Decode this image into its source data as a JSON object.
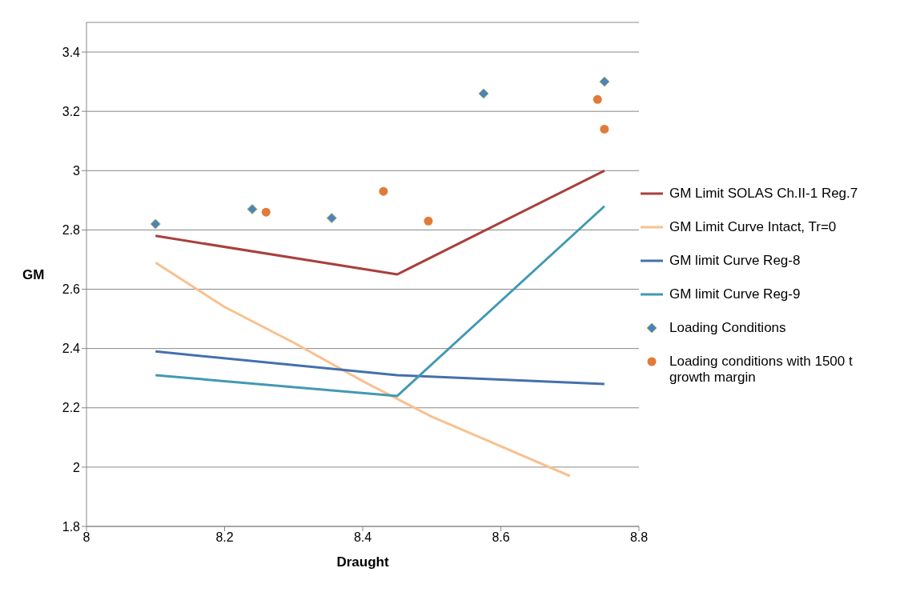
{
  "chart_data": {
    "type": "line",
    "xlabel": "Draught",
    "ylabel": "GM",
    "xlim": [
      8,
      8.8
    ],
    "xticks": [
      8,
      8.2,
      8.4,
      8.6,
      8.8
    ],
    "ylim": [
      1.8,
      3.5
    ],
    "yticks": [
      1.8,
      2,
      2.2,
      2.4,
      2.6,
      2.8,
      3,
      3.2,
      3.4
    ],
    "grid": "y",
    "legend": "right",
    "series": [
      {
        "name": "GM Limit SOLAS Ch.II-1 Reg.7",
        "marker": "none",
        "color": "#a9403d",
        "x": [
          8.1,
          8.45,
          8.75
        ],
        "values": [
          2.78,
          2.65,
          3.0
        ]
      },
      {
        "name": "GM Limit Curve Intact, Tr=0",
        "type": "line",
        "marker": "none",
        "color": "#f9c08f",
        "x": [
          8.1,
          8.2,
          8.3,
          8.4,
          8.5,
          8.6,
          8.7
        ],
        "values": [
          2.69,
          2.54,
          2.42,
          2.29,
          2.17,
          2.07,
          1.97
        ]
      },
      {
        "name": "GM limit Curve Reg-8",
        "type": "line",
        "marker": "none",
        "color": "#4470ad",
        "x": [
          8.1,
          8.45,
          8.75
        ],
        "values": [
          2.39,
          2.31,
          2.28
        ]
      },
      {
        "name": "GM limit Curve Reg-9",
        "type": "line",
        "marker": "none",
        "color": "#4299b3",
        "x": [
          8.1,
          8.45,
          8.75
        ],
        "values": [
          2.31,
          2.24,
          2.88
        ]
      },
      {
        "name": "Loading Conditions",
        "type": "scatter",
        "marker": "diamond",
        "color": "#4f81bd",
        "x": [
          8.1,
          8.24,
          8.355,
          8.575,
          8.75
        ],
        "values": [
          2.82,
          2.87,
          2.84,
          3.26,
          3.3
        ]
      },
      {
        "name": "Loading conditions with 1500 t growth margin",
        "type": "scatter",
        "marker": "circle",
        "color": "#e07b39",
        "x": [
          8.26,
          8.43,
          8.495,
          8.74,
          8.75
        ],
        "values": [
          2.86,
          2.93,
          2.83,
          3.24,
          3.14
        ]
      }
    ]
  }
}
